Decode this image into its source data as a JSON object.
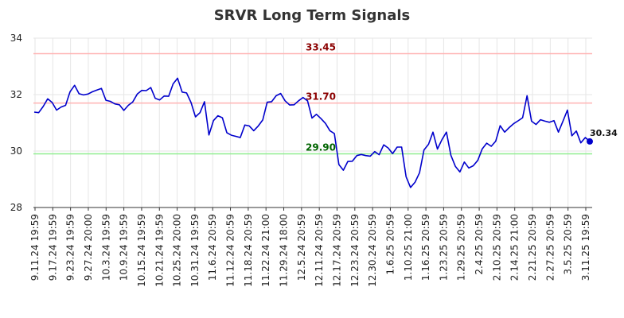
{
  "chart_data": {
    "type": "line",
    "title": "SRVR Long Term Signals",
    "xlabel": "",
    "ylabel": "",
    "ylim": [
      28,
      34
    ],
    "y_ticks": [
      28,
      30,
      32,
      34
    ],
    "grid": true,
    "x_tick_labels": [
      "9.11.24 19:59",
      "9.17.24 19:59",
      "9.23.24 19:59",
      "9.27.24 20:00",
      "10.3.24 19:59",
      "10.9.24 19:59",
      "10.15.24 19:59",
      "10.21.24 19:59",
      "10.25.24 20:00",
      "10.31.24 19:59",
      "11.6.24 20:59",
      "11.12.24 20:59",
      "11.18.24 20:59",
      "11.22.24 21:00",
      "11.29.24 18:00",
      "12.5.24 20:59",
      "12.11.24 20:59",
      "12.17.24 20:59",
      "12.23.24 20:59",
      "12.30.24 20:59",
      "1.6.25 20:59",
      "1.10.25 21:00",
      "1.16.25 20:59",
      "1.23.25 20:59",
      "1.29.25 20:59",
      "2.4.25 20:59",
      "2.10.25 20:59",
      "2.14.25 21:00",
      "2.21.25 20:59",
      "2.27.25 20:59",
      "3.5.25 20:59",
      "3.11.25 19:59"
    ],
    "reference_lines": [
      {
        "value": 33.45,
        "label": "33.45",
        "line_color": "#ffb3b3",
        "label_color": "#8b0000"
      },
      {
        "value": 31.7,
        "label": "31.70",
        "line_color": "#ffb3b3",
        "label_color": "#8b0000"
      },
      {
        "value": 29.9,
        "label": "29.90",
        "line_color": "#90ee90",
        "label_color": "#006400"
      }
    ],
    "series": [
      {
        "color": "#0000cc",
        "values": [
          31.38,
          31.36,
          31.58,
          31.85,
          31.72,
          31.45,
          31.56,
          31.62,
          32.1,
          32.33,
          32.03,
          31.99,
          32.02,
          32.1,
          32.16,
          32.22,
          31.8,
          31.76,
          31.67,
          31.64,
          31.44,
          31.62,
          31.74,
          32.02,
          32.15,
          32.14,
          32.25,
          31.87,
          31.81,
          31.95,
          31.94,
          32.38,
          32.58,
          32.09,
          32.06,
          31.72,
          31.21,
          31.36,
          31.75,
          30.57,
          31.08,
          31.25,
          31.18,
          30.65,
          30.56,
          30.52,
          30.48,
          30.92,
          30.89,
          30.72,
          30.89,
          31.1,
          31.73,
          31.75,
          31.96,
          32.04,
          31.78,
          31.63,
          31.64,
          31.78,
          31.9,
          31.78,
          31.17,
          31.3,
          31.15,
          30.98,
          30.72,
          30.62,
          29.52,
          29.32,
          29.63,
          29.64,
          29.84,
          29.88,
          29.84,
          29.82,
          29.98,
          29.87,
          30.22,
          30.11,
          29.91,
          30.14,
          30.14,
          29.09,
          28.71,
          28.9,
          29.23,
          30.04,
          30.24,
          30.67,
          30.07,
          30.4,
          30.67,
          29.85,
          29.46,
          29.26,
          29.61,
          29.4,
          29.48,
          29.67,
          30.08,
          30.28,
          30.17,
          30.35,
          30.9,
          30.67,
          30.83,
          30.97,
          31.07,
          31.18,
          31.96,
          31.06,
          30.94,
          31.11,
          31.06,
          31.02,
          31.08,
          30.67,
          31.05,
          31.45,
          30.54,
          30.71,
          30.29,
          30.48,
          30.34
        ]
      }
    ],
    "last_value_label": "30.34"
  }
}
